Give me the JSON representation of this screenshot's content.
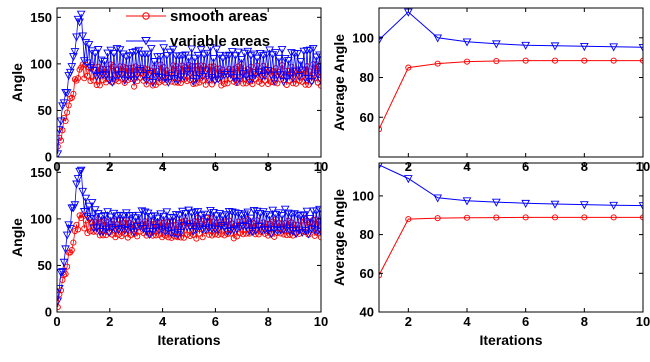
{
  "colors": {
    "smooth": "#ff0000",
    "variable": "#0000ff",
    "axis": "#000000",
    "background": "#ffffff"
  },
  "legend": {
    "placement": "top-right of top-left panel",
    "smooth": "smooth areas",
    "variable": "variable areas"
  },
  "chart_data": [
    {
      "type": "line",
      "panel": "top-left",
      "xlabel": "",
      "ylabel": "Angle",
      "xlim": [
        0,
        10
      ],
      "ylim": [
        0,
        160
      ],
      "xticks": [
        0,
        2,
        4,
        6,
        8,
        10
      ],
      "yticks": [
        0,
        50,
        100,
        150
      ],
      "xtick_labels": [
        "0",
        "2",
        "4",
        "6",
        "8",
        "10"
      ],
      "ytick_labels": [
        "0",
        "50",
        "100",
        "150"
      ],
      "generator": {
        "rise_end": 0.95,
        "start": 0
      },
      "series": [
        {
          "name": "smooth areas",
          "peak": 102,
          "mean": 88,
          "amplitude": 9,
          "marker": "circle"
        },
        {
          "name": "variable areas",
          "peak": 160,
          "mean": 98,
          "amplitude": 14,
          "marker": "triangle-down"
        }
      ]
    },
    {
      "type": "line",
      "panel": "top-right",
      "xlabel": "",
      "ylabel": "Average Angle",
      "xlim": [
        1,
        10
      ],
      "ylim": [
        40,
        115
      ],
      "xticks": [
        2,
        4,
        6,
        8,
        10
      ],
      "yticks": [
        60,
        80,
        100
      ],
      "xtick_labels": [
        "2",
        "4",
        "6",
        "8",
        "10"
      ],
      "ytick_labels": [
        "60",
        "80",
        "100"
      ],
      "x": [
        1,
        2,
        3,
        4,
        5,
        6,
        7,
        8,
        9,
        10
      ],
      "series": [
        {
          "name": "smooth areas",
          "values": [
            54,
            85,
            87,
            88,
            88.3,
            88.5,
            88.5,
            88.5,
            88.5,
            88.5
          ],
          "marker": "circle"
        },
        {
          "name": "variable areas",
          "values": [
            99,
            113,
            100,
            98,
            97,
            96.3,
            96,
            95.7,
            95.5,
            95.2
          ],
          "marker": "triangle-down"
        }
      ]
    },
    {
      "type": "line",
      "panel": "bottom-left",
      "xlabel": "Iterations",
      "ylabel": "Angle",
      "xlim": [
        0,
        10
      ],
      "ylim": [
        0,
        160
      ],
      "xticks": [
        0,
        2,
        4,
        6,
        8,
        10
      ],
      "yticks": [
        0,
        50,
        100,
        150
      ],
      "xtick_labels": [
        "0",
        "2",
        "4",
        "6",
        "8",
        "10"
      ],
      "ytick_labels": [
        "0",
        "50",
        "100",
        "150"
      ],
      "generator": {
        "rise_end": 0.95,
        "start": 0
      },
      "series": [
        {
          "name": "smooth areas",
          "peak": 108,
          "mean": 90,
          "amplitude": 8,
          "marker": "circle"
        },
        {
          "name": "variable areas",
          "peak": 160,
          "mean": 97,
          "amplitude": 10,
          "marker": "triangle-down"
        }
      ]
    },
    {
      "type": "line",
      "panel": "bottom-right",
      "xlabel": "Iterations",
      "ylabel": "Average Angle",
      "xlim": [
        1,
        10
      ],
      "ylim": [
        40,
        117
      ],
      "xticks": [
        2,
        4,
        6,
        8,
        10
      ],
      "yticks": [
        40,
        60,
        80,
        100
      ],
      "xtick_labels": [
        "2",
        "4",
        "6",
        "8",
        "10"
      ],
      "ytick_labels": [
        "40",
        "60",
        "80",
        "100"
      ],
      "x": [
        1,
        2,
        3,
        4,
        5,
        6,
        7,
        8,
        9,
        10
      ],
      "series": [
        {
          "name": "smooth areas",
          "values": [
            59,
            88,
            88.5,
            88.7,
            88.8,
            88.9,
            88.9,
            88.9,
            88.9,
            88.9
          ],
          "marker": "circle"
        },
        {
          "name": "variable areas",
          "values": [
            116,
            109,
            99,
            97.5,
            96.8,
            96.2,
            95.8,
            95.5,
            95.2,
            95
          ],
          "marker": "triangle-down"
        }
      ]
    }
  ]
}
